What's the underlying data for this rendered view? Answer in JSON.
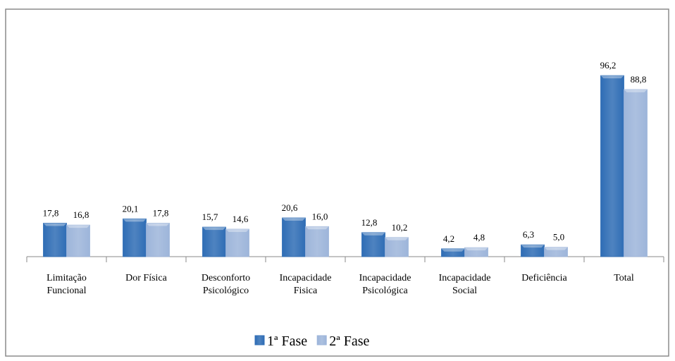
{
  "chart_data": {
    "type": "bar",
    "categories": [
      "Limitação Funcional",
      "Dor Física",
      "Desconforto Psicológico",
      "Incapacidade Fisica",
      "Incapacidade Psicológica",
      "Incapacidade Social",
      "Deficiência",
      "Total"
    ],
    "series": [
      {
        "name": "1ª Fase",
        "color": "#2f6db5",
        "values": [
          17.8,
          20.1,
          15.7,
          20.6,
          12.8,
          4.2,
          6.3,
          96.2
        ],
        "value_labels": [
          "17,8",
          "20,1",
          "15,7",
          "20,6",
          "12,8",
          "4,2",
          "6,3",
          "96,2"
        ]
      },
      {
        "name": "2ª Fase",
        "color": "#9db5da",
        "values": [
          16.8,
          17.8,
          14.6,
          16.0,
          10.2,
          4.8,
          5.0,
          88.8
        ],
        "value_labels": [
          "16,8",
          "17,8",
          "14,6",
          "16,0",
          "10,2",
          "4,8",
          "5,0",
          "88,8"
        ]
      }
    ],
    "ylim": [
      0,
      100
    ],
    "legend": "bottom"
  }
}
